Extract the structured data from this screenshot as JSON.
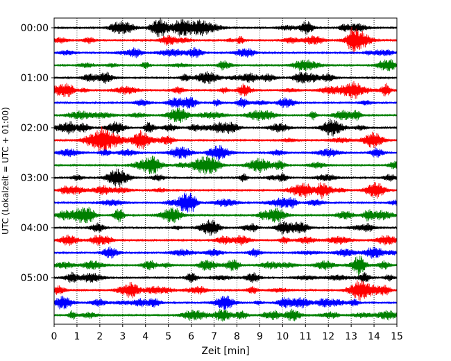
{
  "chart_data": {
    "type": "line",
    "title": "",
    "xlabel": "Zeit  [min]",
    "ylabel": "UTC (Lokalzeit = UTC + 01:00)",
    "xlim": [
      0,
      15
    ],
    "x_ticks": [
      "0",
      "1",
      "2",
      "3",
      "4",
      "5",
      "6",
      "7",
      "8",
      "9",
      "10",
      "11",
      "12",
      "13",
      "14",
      "15"
    ],
    "y_ticks": [
      "00:00",
      "01:00",
      "02:00",
      "03:00",
      "04:00",
      "05:00"
    ],
    "grid": "vertical dotted at each minute",
    "trace_interval_minutes": 15,
    "trace_count": 24,
    "start_utc": "00:00",
    "end_utc": "05:45",
    "color_cycle": [
      "#000000",
      "#ff0000",
      "#0000ff",
      "#008000"
    ]
  }
}
